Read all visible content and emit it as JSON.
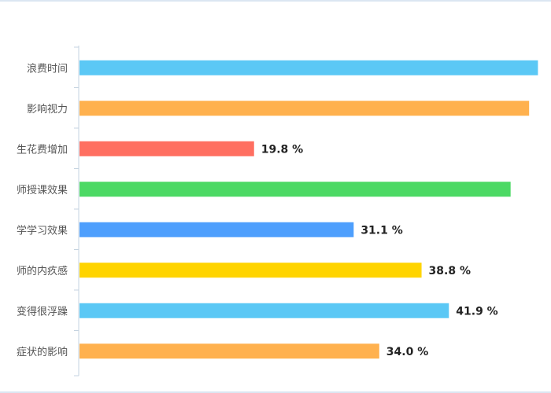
{
  "chart_data": {
    "type": "bar",
    "orientation": "horizontal",
    "categories": [
      "浪费时间",
      "影响视力",
      "生花费增加",
      "师授课效果",
      "学学习效果",
      "师的内疚感",
      "变得很浮躁",
      "症状的影响"
    ],
    "values": [
      52.0,
      51.0,
      19.8,
      48.9,
      31.1,
      38.8,
      41.9,
      34.0
    ],
    "value_labels": [
      null,
      null,
      "19.8 %",
      null,
      "31.1 %",
      "38.8 %",
      "41.9 %",
      "34.0 %"
    ],
    "colors": [
      "#5bc8f5",
      "#ffb14e",
      "#ff6f61",
      "#4cd964",
      "#4e9ffd",
      "#ffd400",
      "#5bc8f5",
      "#ffb14e"
    ],
    "xlim": [
      0,
      100
    ],
    "grid": false,
    "title": "",
    "xlabel": "",
    "ylabel": ""
  }
}
